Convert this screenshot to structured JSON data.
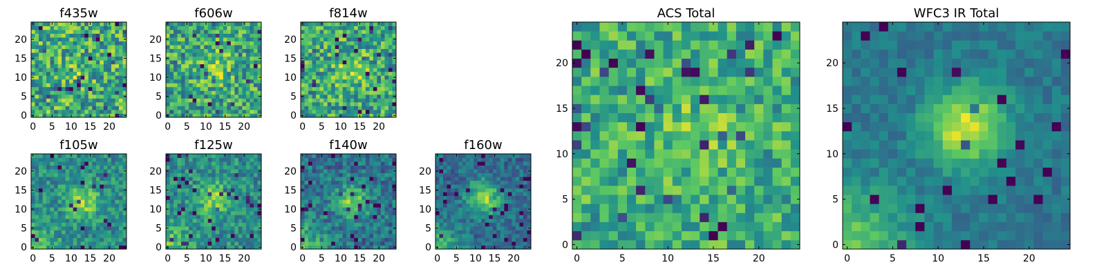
{
  "colormap": [
    "#440154",
    "#3b528b",
    "#21918c",
    "#5ec962",
    "#fde725"
  ],
  "chart_data": [
    {
      "type": "heatmap",
      "title": "f435w",
      "grid": [
        25,
        25
      ],
      "xticks": [
        0,
        5,
        10,
        15,
        20
      ],
      "yticks": [
        0,
        5,
        10,
        15,
        20
      ],
      "xlim": [
        0,
        25
      ],
      "ylim": [
        0,
        25
      ],
      "source_peak": [
        12,
        11
      ],
      "source_strength": 0.1,
      "noise": 0.6,
      "floor": 0.62,
      "bias_corner": 0,
      "seed": 11
    },
    {
      "type": "heatmap",
      "title": "f606w",
      "grid": [
        25,
        25
      ],
      "xticks": [
        0,
        5,
        10,
        15,
        20
      ],
      "yticks": [
        0,
        5,
        10,
        15,
        20
      ],
      "xlim": [
        0,
        25
      ],
      "ylim": [
        0,
        25
      ],
      "source_peak": [
        13,
        13
      ],
      "source_strength": 0.2,
      "noise": 0.55,
      "floor": 0.6,
      "bias_corner": 0,
      "seed": 23
    },
    {
      "type": "heatmap",
      "title": "f814w",
      "grid": [
        25,
        25
      ],
      "xticks": [
        0,
        5,
        10,
        15,
        20
      ],
      "yticks": [
        0,
        5,
        10,
        15,
        20
      ],
      "xlim": [
        0,
        25
      ],
      "ylim": [
        0,
        25
      ],
      "source_peak": [
        13,
        12
      ],
      "source_strength": 0.22,
      "noise": 0.55,
      "floor": 0.6,
      "bias_corner": 0,
      "seed": 37
    },
    {
      "type": "heatmap",
      "title": "f105w",
      "grid": [
        25,
        25
      ],
      "xticks": [
        0,
        5,
        10,
        15,
        20
      ],
      "yticks": [
        0,
        5,
        10,
        15,
        20
      ],
      "xlim": [
        0,
        25
      ],
      "ylim": [
        0,
        25
      ],
      "source_peak": [
        13,
        12
      ],
      "source_strength": 0.35,
      "noise": 0.35,
      "floor": 0.48,
      "bias_corner": 0.2,
      "seed": 41
    },
    {
      "type": "heatmap",
      "title": "f125w",
      "grid": [
        25,
        25
      ],
      "xticks": [
        0,
        5,
        10,
        15,
        20
      ],
      "yticks": [
        0,
        5,
        10,
        15,
        20
      ],
      "xlim": [
        0,
        25
      ],
      "ylim": [
        0,
        25
      ],
      "source_peak": [
        12,
        13
      ],
      "source_strength": 0.35,
      "noise": 0.35,
      "floor": 0.48,
      "bias_corner": 0.25,
      "seed": 53
    },
    {
      "type": "heatmap",
      "title": "f140w",
      "grid": [
        25,
        25
      ],
      "xticks": [
        0,
        5,
        10,
        15,
        20
      ],
      "yticks": [
        0,
        5,
        10,
        15,
        20
      ],
      "xlim": [
        0,
        25
      ],
      "ylim": [
        0,
        25
      ],
      "source_peak": [
        13,
        12
      ],
      "source_strength": 0.4,
      "noise": 0.35,
      "floor": 0.38,
      "bias_corner": 0.3,
      "seed": 67
    },
    {
      "type": "heatmap",
      "title": "f160w",
      "grid": [
        25,
        25
      ],
      "xticks": [
        0,
        5,
        10,
        15,
        20
      ],
      "yticks": [
        0,
        5,
        10,
        15,
        20
      ],
      "xlim": [
        0,
        25
      ],
      "ylim": [
        0,
        25
      ],
      "source_peak": [
        12,
        13
      ],
      "source_strength": 0.5,
      "noise": 0.3,
      "floor": 0.35,
      "bias_corner": 0.3,
      "seed": 71
    },
    {
      "type": "heatmap",
      "title": "ACS Total",
      "grid": [
        25,
        25
      ],
      "xticks": [
        0,
        5,
        10,
        15,
        20
      ],
      "yticks": [
        0,
        5,
        10,
        15,
        20
      ],
      "xlim": [
        0,
        25
      ],
      "ylim": [
        0,
        25
      ],
      "source_peak": [
        13,
        12
      ],
      "source_strength": 0.15,
      "noise": 0.45,
      "floor": 0.62,
      "bias_corner": 0,
      "seed": 83
    },
    {
      "type": "heatmap",
      "title": "WFC3 IR Total",
      "grid": [
        25,
        25
      ],
      "xticks": [
        0,
        5,
        10,
        15,
        20
      ],
      "yticks": [
        0,
        5,
        10,
        15,
        20
      ],
      "xlim": [
        0,
        25
      ],
      "ylim": [
        0,
        25
      ],
      "source_peak": [
        13,
        13
      ],
      "source_strength": 0.55,
      "noise": 0.18,
      "floor": 0.4,
      "bias_corner": 0.35,
      "seed": 97
    }
  ]
}
